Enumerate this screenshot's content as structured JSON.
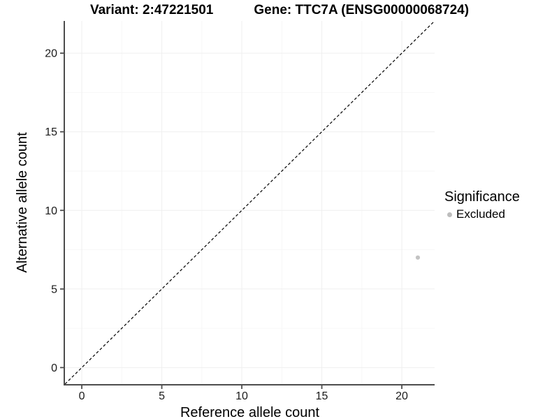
{
  "chart_data": {
    "type": "scatter",
    "titles": [
      "Variant: 2:47221501",
      "Gene: TTC7A (ENSG00000068724)"
    ],
    "xlabel": "Reference allele count",
    "ylabel": "Alternative allele count",
    "xlim": [
      -1.05,
      22.05
    ],
    "ylim": [
      -1.05,
      22.05
    ],
    "x_ticks": [
      0,
      5,
      10,
      15,
      20
    ],
    "y_ticks": [
      0,
      5,
      10,
      15,
      20
    ],
    "x_minor_ticks": [
      2.5,
      7.5,
      12.5,
      17.5
    ],
    "y_minor_ticks": [
      2.5,
      7.5,
      12.5,
      17.5
    ],
    "grid": "major and minor, very light gray, white panel background",
    "reference_line": {
      "equation": "y = x",
      "style": "dashed",
      "color": "#000000"
    },
    "series": [
      {
        "name": "Excluded",
        "color": "#c3c3c3",
        "points": [
          [
            21,
            7
          ]
        ]
      }
    ],
    "legend": {
      "title": "Significance",
      "position": "right",
      "items": [
        {
          "label": "Excluded",
          "color": "#bdbdbd"
        }
      ]
    }
  },
  "colors": {
    "background": "#ffffff",
    "axis_line": "#4d4d4d",
    "tick_mark": "#4d4d4d",
    "tick_label": "#1a1a1a",
    "grid_major": "#efefef",
    "grid_minor": "#f7f7f7",
    "title_text": "#000000"
  }
}
